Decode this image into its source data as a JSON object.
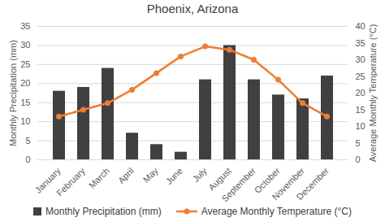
{
  "chart_data": {
    "type": "bar",
    "title": "Phoenix, Arizona",
    "categories": [
      "January",
      "February",
      "March",
      "April",
      "May",
      "June",
      "July",
      "August",
      "September",
      "October",
      "November",
      "December"
    ],
    "ylabel": "Monthly Precipitation (mm)",
    "y2label": "Average Monthly Temperature (°C)",
    "ylim": [
      0,
      35
    ],
    "yticks": [
      0,
      5,
      10,
      15,
      20,
      25,
      30,
      35
    ],
    "y2lim": [
      0,
      40
    ],
    "y2ticks": [
      0,
      5,
      10,
      15,
      20,
      25,
      30,
      35,
      40
    ],
    "grid": true,
    "legend": "bottom",
    "series": [
      {
        "name": "Monthly Precipitation (mm)",
        "type": "bar",
        "color": "#404040",
        "values": [
          18,
          19,
          24,
          7,
          4,
          2,
          21,
          30,
          21,
          17,
          16,
          22
        ]
      },
      {
        "name": "Average Monthly Temperature (°C)",
        "type": "line",
        "axis": "y2",
        "color": "#ED7D31",
        "marker": "circle",
        "values": [
          13,
          15,
          17,
          21,
          26,
          31,
          34,
          33,
          30,
          24,
          17,
          13
        ]
      }
    ]
  }
}
